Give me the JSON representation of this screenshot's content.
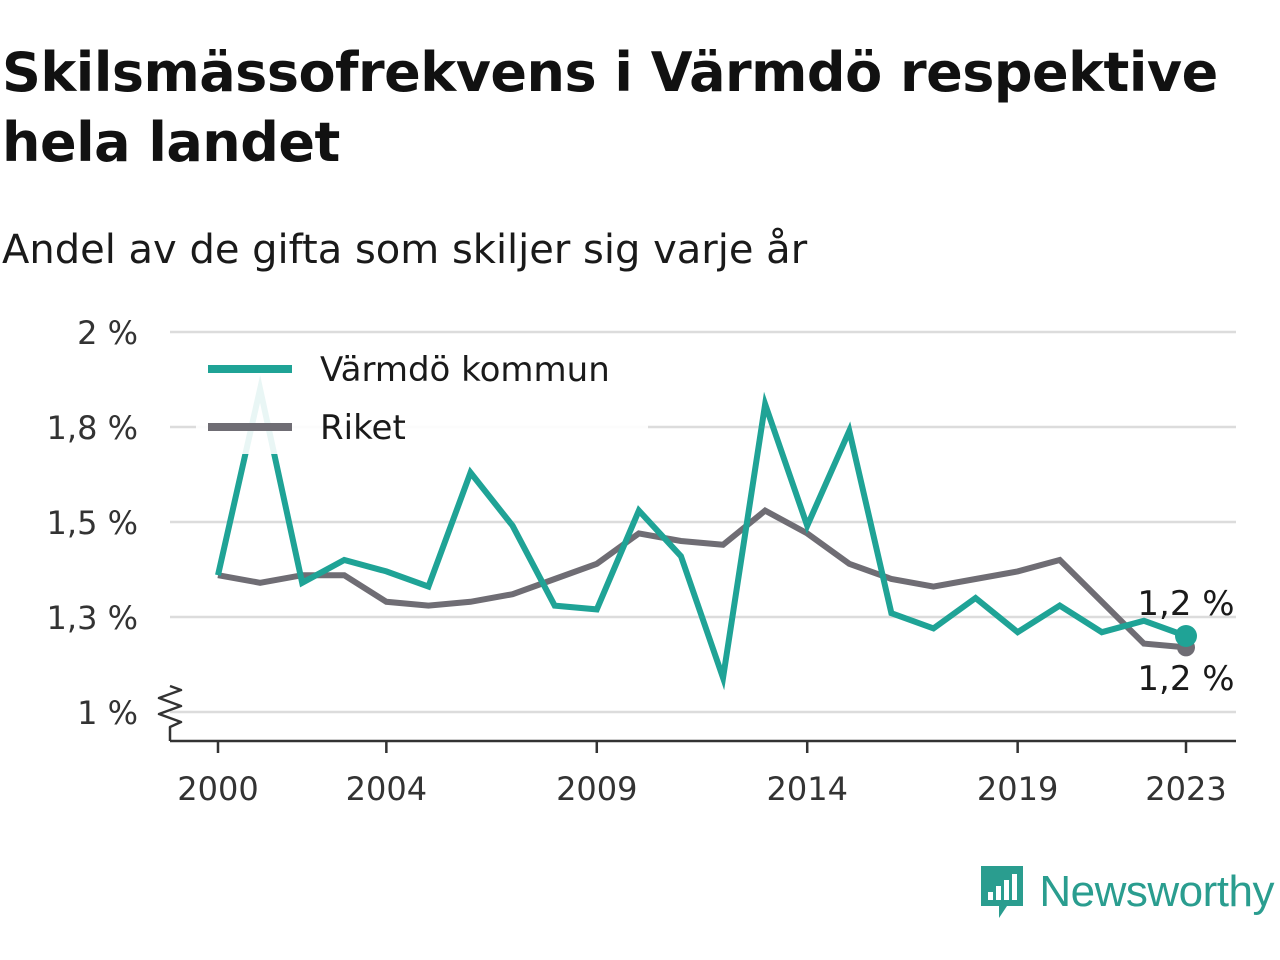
{
  "title": "Skilsmässofrekvens i Värmdö respektive hela landet",
  "subtitle": "Andel av de gifta som skiljer sig varje år",
  "brand": {
    "name": "Newsworthy",
    "icon": "newsworthy-logo-icon",
    "color": "#2a9d8f"
  },
  "chart_data": {
    "type": "line",
    "title": "Skilsmässofrekvens i Värmdö respektive hela landet",
    "subtitle": "Andel av de gifta som skiljer sig varje år",
    "xlabel": "",
    "ylabel": "",
    "x": [
      2000,
      2001,
      2002,
      2003,
      2004,
      2005,
      2006,
      2007,
      2008,
      2009,
      2010,
      2011,
      2012,
      2013,
      2014,
      2015,
      2016,
      2017,
      2018,
      2019,
      2020,
      2021,
      2022,
      2023
    ],
    "x_ticks": [
      2000,
      2004,
      2009,
      2014,
      2019,
      2023
    ],
    "x_tick_labels": [
      "2000",
      "2004",
      "2009",
      "2014",
      "2019",
      "2023"
    ],
    "y_ticks": [
      1.0,
      1.25,
      1.5,
      1.75,
      2.0
    ],
    "y_tick_labels": [
      "1 %",
      "1,3 %",
      "1,5 %",
      "1,8 %",
      "2 %"
    ],
    "ylim": [
      1.0,
      2.0
    ],
    "y_axis_break": true,
    "grid": true,
    "legend_position": "top-left",
    "series": [
      {
        "name": "Värmdö kommun",
        "color": "#1fa396",
        "values": [
          1.36,
          1.85,
          1.34,
          1.4,
          1.37,
          1.33,
          1.63,
          1.49,
          1.28,
          1.27,
          1.53,
          1.41,
          1.09,
          1.81,
          1.49,
          1.74,
          1.26,
          1.22,
          1.3,
          1.21,
          1.28,
          1.21,
          1.24,
          1.2
        ],
        "end_label": "1,2 %"
      },
      {
        "name": "Riket",
        "color": "#6f6d74",
        "values": [
          1.36,
          1.34,
          1.36,
          1.36,
          1.29,
          1.28,
          1.29,
          1.31,
          1.35,
          1.39,
          1.47,
          1.45,
          1.44,
          1.53,
          1.47,
          1.39,
          1.35,
          1.33,
          1.35,
          1.37,
          1.4,
          1.29,
          1.18,
          1.17
        ],
        "end_label": "1,2 %"
      }
    ]
  }
}
